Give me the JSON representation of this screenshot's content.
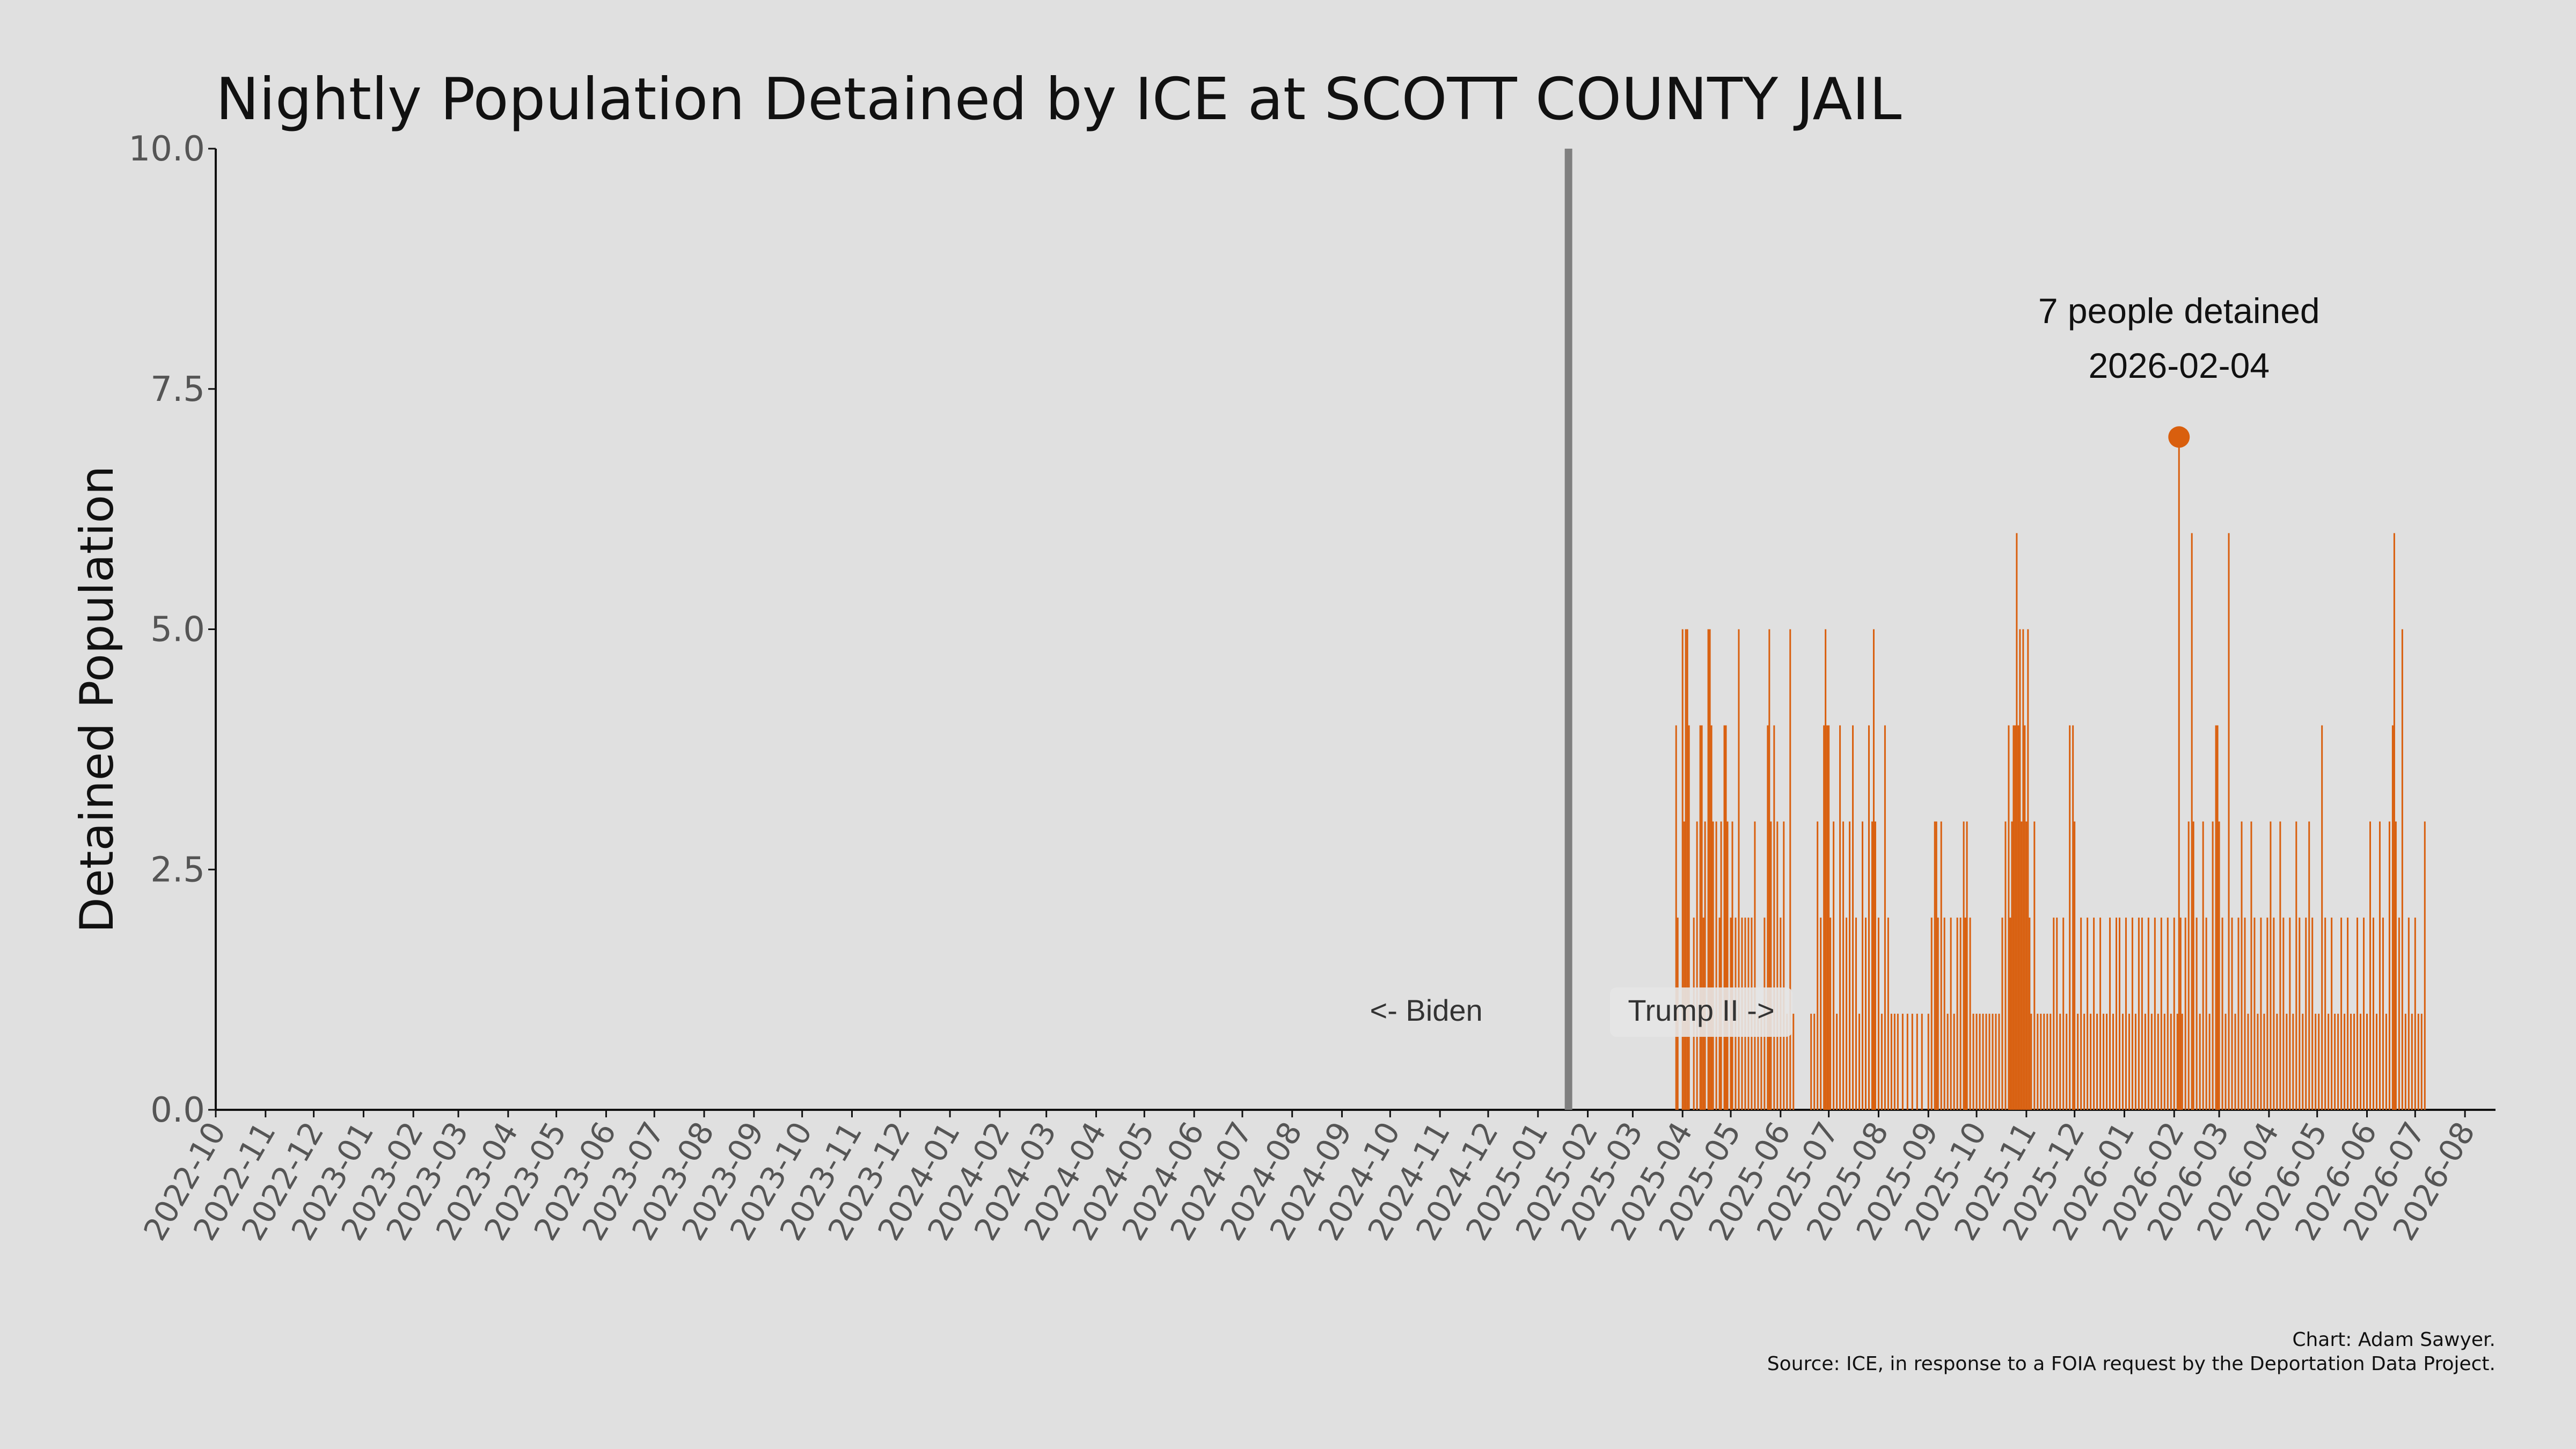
{
  "chart_data": {
    "type": "bar",
    "title": "Nightly Population Detained by ICE at SCOTT COUNTY JAIL",
    "ylabel": "Detained Population",
    "xlabel": "",
    "ylim": [
      0,
      10
    ],
    "yticks": [
      "0.0",
      "2.5",
      "5.0",
      "7.5",
      "10.0"
    ],
    "ytick_values": [
      0,
      2.5,
      5,
      7.5,
      10
    ],
    "x_range": [
      "2022-10-01",
      "2026-08-20"
    ],
    "xtick_labels": [
      "2022-10",
      "2022-11",
      "2022-12",
      "2023-01",
      "2023-02",
      "2023-03",
      "2023-04",
      "2023-05",
      "2023-06",
      "2023-07",
      "2023-08",
      "2023-09",
      "2023-10",
      "2023-11",
      "2023-12",
      "2024-01",
      "2024-02",
      "2024-03",
      "2024-04",
      "2024-05",
      "2024-06",
      "2024-07",
      "2024-08",
      "2024-09",
      "2024-10",
      "2024-11",
      "2024-12",
      "2025-01",
      "2025-02",
      "2025-03",
      "2025-04",
      "2025-05",
      "2025-06",
      "2025-07",
      "2025-08",
      "2025-09",
      "2025-10",
      "2025-11",
      "2025-12",
      "2026-01",
      "2026-02",
      "2026-03",
      "2026-04",
      "2026-05",
      "2026-06",
      "2026-07",
      "2026-08"
    ],
    "grid": false,
    "colors": {
      "bars": "#d95f0e",
      "divider": "#808080",
      "background": "#e0e0e0"
    },
    "divider_date": "2025-01-20",
    "biden_label": "<- Biden",
    "trump_label": "Trump II ->",
    "peak": {
      "date": "2026-02-04",
      "value": 7,
      "line1": "7 people detained",
      "line2": "2026-02-04"
    },
    "series": [
      {
        "values_by_date": [
          [
            "2025-03-28",
            4
          ],
          [
            "2025-03-29",
            2
          ],
          [
            "2025-04-01",
            5
          ],
          [
            "2025-04-02",
            3
          ],
          [
            "2025-04-03",
            5
          ],
          [
            "2025-04-04",
            5
          ],
          [
            "2025-04-05",
            4
          ],
          [
            "2025-04-08",
            2
          ],
          [
            "2025-04-10",
            3
          ],
          [
            "2025-04-12",
            4
          ],
          [
            "2025-04-13",
            4
          ],
          [
            "2025-04-14",
            2
          ],
          [
            "2025-04-15",
            3
          ],
          [
            "2025-04-17",
            5
          ],
          [
            "2025-04-18",
            5
          ],
          [
            "2025-04-19",
            4
          ],
          [
            "2025-04-20",
            3
          ],
          [
            "2025-04-22",
            3
          ],
          [
            "2025-04-24",
            2
          ],
          [
            "2025-04-25",
            3
          ],
          [
            "2025-04-27",
            4
          ],
          [
            "2025-04-28",
            4
          ],
          [
            "2025-04-29",
            3
          ],
          [
            "2025-05-01",
            2
          ],
          [
            "2025-05-02",
            3
          ],
          [
            "2025-05-04",
            2
          ],
          [
            "2025-05-06",
            5
          ],
          [
            "2025-05-08",
            2
          ],
          [
            "2025-05-10",
            2
          ],
          [
            "2025-05-12",
            2
          ],
          [
            "2025-05-14",
            2
          ],
          [
            "2025-05-16",
            3
          ],
          [
            "2025-05-18",
            1
          ],
          [
            "2025-05-20",
            1
          ],
          [
            "2025-05-22",
            2
          ],
          [
            "2025-05-24",
            4
          ],
          [
            "2025-05-25",
            5
          ],
          [
            "2025-05-26",
            3
          ],
          [
            "2025-05-28",
            4
          ],
          [
            "2025-05-30",
            3
          ],
          [
            "2025-06-01",
            2
          ],
          [
            "2025-06-03",
            3
          ],
          [
            "2025-06-05",
            1
          ],
          [
            "2025-06-07",
            5
          ],
          [
            "2025-06-09",
            1
          ],
          [
            "2025-06-20",
            1
          ],
          [
            "2025-06-22",
            1
          ],
          [
            "2025-06-24",
            3
          ],
          [
            "2025-06-26",
            2
          ],
          [
            "2025-06-28",
            4
          ],
          [
            "2025-06-29",
            5
          ],
          [
            "2025-06-30",
            4
          ],
          [
            "2025-07-01",
            4
          ],
          [
            "2025-07-02",
            2
          ],
          [
            "2025-07-04",
            3
          ],
          [
            "2025-07-06",
            1
          ],
          [
            "2025-07-08",
            4
          ],
          [
            "2025-07-10",
            3
          ],
          [
            "2025-07-12",
            2
          ],
          [
            "2025-07-14",
            3
          ],
          [
            "2025-07-16",
            4
          ],
          [
            "2025-07-18",
            2
          ],
          [
            "2025-07-20",
            1
          ],
          [
            "2025-07-22",
            3
          ],
          [
            "2025-07-24",
            2
          ],
          [
            "2025-07-26",
            4
          ],
          [
            "2025-07-28",
            3
          ],
          [
            "2025-07-29",
            5
          ],
          [
            "2025-07-30",
            3
          ],
          [
            "2025-08-01",
            2
          ],
          [
            "2025-08-03",
            1
          ],
          [
            "2025-08-05",
            4
          ],
          [
            "2025-08-07",
            2
          ],
          [
            "2025-08-09",
            1
          ],
          [
            "2025-08-11",
            1
          ],
          [
            "2025-08-13",
            1
          ],
          [
            "2025-08-16",
            1
          ],
          [
            "2025-08-19",
            1
          ],
          [
            "2025-08-22",
            1
          ],
          [
            "2025-08-25",
            1
          ],
          [
            "2025-08-28",
            1
          ],
          [
            "2025-09-01",
            1
          ],
          [
            "2025-09-03",
            2
          ],
          [
            "2025-09-05",
            3
          ],
          [
            "2025-09-06",
            3
          ],
          [
            "2025-09-07",
            2
          ],
          [
            "2025-09-09",
            3
          ],
          [
            "2025-09-11",
            2
          ],
          [
            "2025-09-13",
            1
          ],
          [
            "2025-09-15",
            2
          ],
          [
            "2025-09-17",
            1
          ],
          [
            "2025-09-19",
            2
          ],
          [
            "2025-09-21",
            2
          ],
          [
            "2025-09-23",
            3
          ],
          [
            "2025-09-24",
            2
          ],
          [
            "2025-09-25",
            3
          ],
          [
            "2025-09-27",
            2
          ],
          [
            "2025-09-29",
            1
          ],
          [
            "2025-10-01",
            1
          ],
          [
            "2025-10-03",
            1
          ],
          [
            "2025-10-05",
            1
          ],
          [
            "2025-10-07",
            1
          ],
          [
            "2025-10-09",
            1
          ],
          [
            "2025-10-11",
            1
          ],
          [
            "2025-10-13",
            1
          ],
          [
            "2025-10-15",
            1
          ],
          [
            "2025-10-17",
            2
          ],
          [
            "2025-10-19",
            3
          ],
          [
            "2025-10-21",
            4
          ],
          [
            "2025-10-22",
            2
          ],
          [
            "2025-10-23",
            3
          ],
          [
            "2025-10-24",
            4
          ],
          [
            "2025-10-25",
            4
          ],
          [
            "2025-10-26",
            6
          ],
          [
            "2025-10-27",
            4
          ],
          [
            "2025-10-28",
            5
          ],
          [
            "2025-10-29",
            3
          ],
          [
            "2025-10-30",
            5
          ],
          [
            "2025-10-31",
            4
          ],
          [
            "2025-11-01",
            3
          ],
          [
            "2025-11-02",
            5
          ],
          [
            "2025-11-03",
            2
          ],
          [
            "2025-11-04",
            1
          ],
          [
            "2025-11-06",
            3
          ],
          [
            "2025-11-08",
            1
          ],
          [
            "2025-11-10",
            1
          ],
          [
            "2025-11-12",
            1
          ],
          [
            "2025-11-14",
            1
          ],
          [
            "2025-11-16",
            1
          ],
          [
            "2025-11-18",
            2
          ],
          [
            "2025-11-20",
            2
          ],
          [
            "2025-11-22",
            1
          ],
          [
            "2025-11-24",
            2
          ],
          [
            "2025-11-26",
            1
          ],
          [
            "2025-11-28",
            4
          ],
          [
            "2025-11-30",
            4
          ],
          [
            "2025-12-01",
            3
          ],
          [
            "2025-12-03",
            1
          ],
          [
            "2025-12-05",
            2
          ],
          [
            "2025-12-07",
            1
          ],
          [
            "2025-12-09",
            2
          ],
          [
            "2025-12-11",
            1
          ],
          [
            "2025-12-13",
            2
          ],
          [
            "2025-12-15",
            1
          ],
          [
            "2025-12-17",
            2
          ],
          [
            "2025-12-19",
            1
          ],
          [
            "2025-12-21",
            1
          ],
          [
            "2025-12-23",
            2
          ],
          [
            "2025-12-25",
            1
          ],
          [
            "2025-12-27",
            2
          ],
          [
            "2025-12-29",
            2
          ],
          [
            "2025-12-31",
            1
          ],
          [
            "2026-01-02",
            2
          ],
          [
            "2026-01-04",
            1
          ],
          [
            "2026-01-06",
            2
          ],
          [
            "2026-01-08",
            1
          ],
          [
            "2026-01-10",
            2
          ],
          [
            "2026-01-12",
            2
          ],
          [
            "2026-01-14",
            1
          ],
          [
            "2026-01-16",
            2
          ],
          [
            "2026-01-18",
            1
          ],
          [
            "2026-01-20",
            2
          ],
          [
            "2026-01-22",
            1
          ],
          [
            "2026-01-24",
            2
          ],
          [
            "2026-01-26",
            1
          ],
          [
            "2026-01-28",
            2
          ],
          [
            "2026-01-30",
            1
          ],
          [
            "2026-02-01",
            2
          ],
          [
            "2026-02-03",
            1
          ],
          [
            "2026-02-04",
            7
          ],
          [
            "2026-02-05",
            2
          ],
          [
            "2026-02-06",
            1
          ],
          [
            "2026-02-08",
            2
          ],
          [
            "2026-02-10",
            3
          ],
          [
            "2026-02-12",
            6
          ],
          [
            "2026-02-13",
            3
          ],
          [
            "2026-02-15",
            2
          ],
          [
            "2026-02-17",
            1
          ],
          [
            "2026-02-19",
            3
          ],
          [
            "2026-02-21",
            2
          ],
          [
            "2026-02-23",
            1
          ],
          [
            "2026-02-25",
            3
          ],
          [
            "2026-02-27",
            4
          ],
          [
            "2026-02-28",
            4
          ],
          [
            "2026-03-01",
            3
          ],
          [
            "2026-03-03",
            2
          ],
          [
            "2026-03-05",
            1
          ],
          [
            "2026-03-07",
            6
          ],
          [
            "2026-03-09",
            2
          ],
          [
            "2026-03-11",
            1
          ],
          [
            "2026-03-13",
            2
          ],
          [
            "2026-03-15",
            3
          ],
          [
            "2026-03-17",
            2
          ],
          [
            "2026-03-19",
            1
          ],
          [
            "2026-03-21",
            3
          ],
          [
            "2026-03-23",
            2
          ],
          [
            "2026-03-25",
            1
          ],
          [
            "2026-03-27",
            2
          ],
          [
            "2026-03-29",
            1
          ],
          [
            "2026-03-31",
            2
          ],
          [
            "2026-04-02",
            3
          ],
          [
            "2026-04-04",
            2
          ],
          [
            "2026-04-06",
            1
          ],
          [
            "2026-04-08",
            3
          ],
          [
            "2026-04-10",
            2
          ],
          [
            "2026-04-12",
            1
          ],
          [
            "2026-04-14",
            2
          ],
          [
            "2026-04-16",
            1
          ],
          [
            "2026-04-18",
            3
          ],
          [
            "2026-04-20",
            2
          ],
          [
            "2026-04-22",
            1
          ],
          [
            "2026-04-24",
            2
          ],
          [
            "2026-04-26",
            3
          ],
          [
            "2026-04-28",
            2
          ],
          [
            "2026-04-30",
            1
          ],
          [
            "2026-05-02",
            1
          ],
          [
            "2026-05-04",
            4
          ],
          [
            "2026-05-06",
            2
          ],
          [
            "2026-05-08",
            1
          ],
          [
            "2026-05-10",
            2
          ],
          [
            "2026-05-12",
            1
          ],
          [
            "2026-05-14",
            1
          ],
          [
            "2026-05-16",
            2
          ],
          [
            "2026-05-18",
            1
          ],
          [
            "2026-05-20",
            2
          ],
          [
            "2026-05-22",
            1
          ],
          [
            "2026-05-24",
            1
          ],
          [
            "2026-05-26",
            2
          ],
          [
            "2026-05-28",
            1
          ],
          [
            "2026-05-30",
            2
          ],
          [
            "2026-06-01",
            1
          ],
          [
            "2026-06-03",
            3
          ],
          [
            "2026-06-05",
            2
          ],
          [
            "2026-06-07",
            1
          ],
          [
            "2026-06-09",
            3
          ],
          [
            "2026-06-11",
            2
          ],
          [
            "2026-06-13",
            1
          ],
          [
            "2026-06-15",
            3
          ],
          [
            "2026-06-17",
            4
          ],
          [
            "2026-06-18",
            6
          ],
          [
            "2026-06-19",
            3
          ],
          [
            "2026-06-21",
            2
          ],
          [
            "2026-06-23",
            5
          ],
          [
            "2026-06-25",
            1
          ],
          [
            "2026-06-27",
            2
          ],
          [
            "2026-06-29",
            1
          ],
          [
            "2026-07-01",
            2
          ],
          [
            "2026-07-03",
            1
          ],
          [
            "2026-07-05",
            1
          ],
          [
            "2026-07-07",
            3
          ]
        ]
      }
    ]
  },
  "credit": {
    "line1": "Chart: Adam Sawyer.",
    "line2": "Source: ICE, in response to a FOIA request by the Deportation Data Project."
  }
}
